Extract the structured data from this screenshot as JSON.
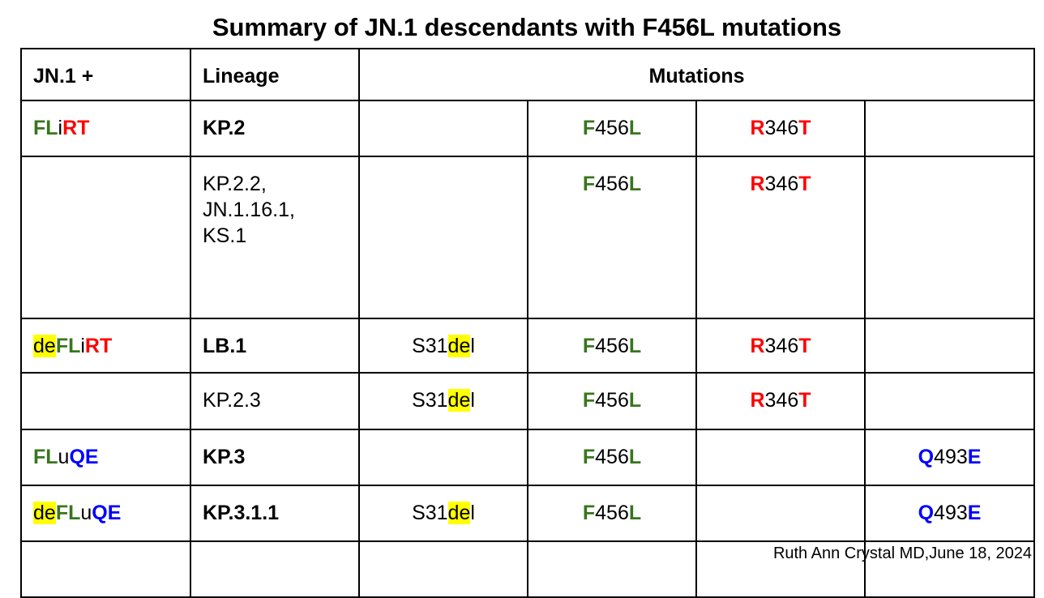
{
  "title": "Summary of JN.1 descendants with F456L mutations",
  "header": {
    "col1": "JN.1 +",
    "col2": "Lineage",
    "mutations": "Mutations"
  },
  "rows": [
    {
      "nickname": [
        "FL",
        "i",
        "RT"
      ],
      "lineage": "KP.2",
      "lineage_bold": true,
      "deletion": null,
      "f456l": [
        "F",
        "456",
        "L"
      ],
      "r346t": [
        "R",
        "346",
        "T"
      ],
      "q493e": null
    },
    {
      "nickname": null,
      "lineage_lines": [
        "KP.2.2,",
        "JN.1.16.1,",
        "KS.1"
      ],
      "lineage_bold": false,
      "deletion": null,
      "f456l": [
        "F",
        "456",
        "L"
      ],
      "r346t": [
        "R",
        "346",
        "T"
      ],
      "q493e": null
    },
    {
      "nickname": [
        "de",
        "FL",
        "i",
        "RT"
      ],
      "lineage": "LB.1",
      "lineage_bold": true,
      "deletion": [
        "S31",
        "de",
        "l"
      ],
      "f456l": [
        "F",
        "456",
        "L"
      ],
      "r346t": [
        "R",
        "346",
        "T"
      ],
      "q493e": null
    },
    {
      "nickname": null,
      "lineage": "KP.2.3",
      "lineage_bold": false,
      "deletion": [
        "S31",
        "de",
        "l"
      ],
      "f456l": [
        "F",
        "456",
        "L"
      ],
      "r346t": [
        "R",
        "346",
        "T"
      ],
      "q493e": null
    },
    {
      "nickname": [
        "FL",
        "u",
        "QE"
      ],
      "lineage": "KP.3",
      "lineage_bold": true,
      "deletion": null,
      "f456l": [
        "F",
        "456",
        "L"
      ],
      "r346t": null,
      "q493e": [
        "Q",
        "493",
        "E"
      ]
    },
    {
      "nickname": [
        "de",
        "FL",
        "u",
        "QE"
      ],
      "lineage": "KP.3.1.1",
      "lineage_bold": true,
      "deletion": [
        "S31",
        "de",
        "l"
      ],
      "f456l": [
        "F",
        "456",
        "L"
      ],
      "r346t": null,
      "q493e": [
        "Q",
        "493",
        "E"
      ]
    }
  ],
  "colors": {
    "f456l": "#38761d",
    "r346t": "#ff0000",
    "q493e": "#0000ff",
    "deletion_highlight": "#ffff00"
  },
  "credit": "Ruth Ann Crystal MD,June 18, 2024"
}
